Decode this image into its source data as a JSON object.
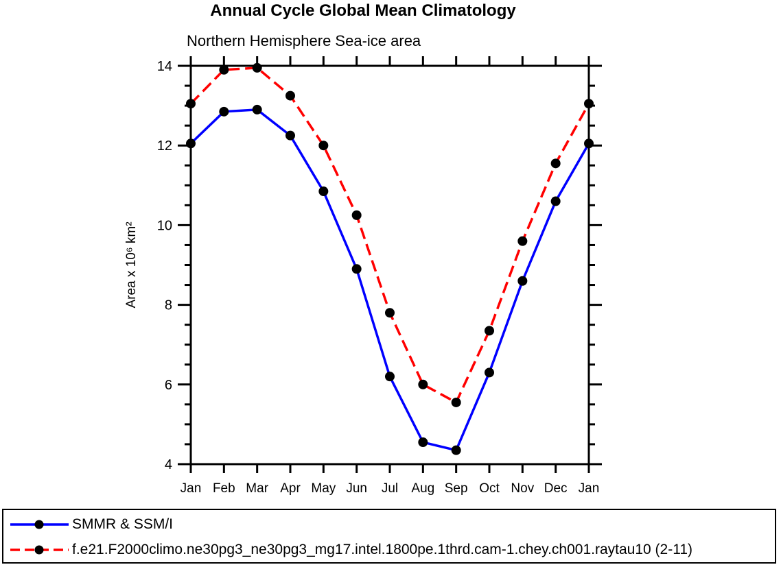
{
  "title": "Annual Cycle Global Mean Climatology",
  "subtitle": "Northern Hemisphere Sea-ice area",
  "chart_data": {
    "type": "line",
    "title": "Annual Cycle Global Mean Climatology",
    "subtitle": "Northern Hemisphere Sea-ice area",
    "xlabel": "",
    "ylabel": "Area x 10⁶ km²",
    "categories": [
      "Jan",
      "Feb",
      "Mar",
      "Apr",
      "May",
      "Jun",
      "Jul",
      "Aug",
      "Sep",
      "Oct",
      "Nov",
      "Dec",
      "Jan"
    ],
    "ylim": [
      4,
      14
    ],
    "ytick_major": [
      4,
      6,
      8,
      10,
      12,
      14
    ],
    "ytick_minor_step": 0.5,
    "grid": false,
    "frame": "box-with-outward-ticks",
    "legend_position": "bottom-left-box",
    "series": [
      {
        "name": "SMMR & SSM/I",
        "color": "#0000ff",
        "line_style": "solid",
        "marker": "filled-circle",
        "marker_color": "#000000",
        "values": [
          12.05,
          12.85,
          12.9,
          12.25,
          10.85,
          8.9,
          6.2,
          4.55,
          4.35,
          6.3,
          8.6,
          10.6,
          12.05
        ]
      },
      {
        "name": "f.e21.F2000climo.ne30pg3_ne30pg3_mg17.intel.1800pe.1thrd.cam-1.chey.ch001.raytau10 (2-11)",
        "color": "#ff0000",
        "line_style": "dashed",
        "marker": "filled-circle",
        "marker_color": "#000000",
        "values": [
          13.05,
          13.9,
          13.95,
          13.25,
          12.0,
          10.25,
          7.8,
          6.0,
          5.55,
          7.35,
          9.6,
          11.55,
          13.05
        ]
      }
    ],
    "colors": {
      "axis": "#000000",
      "text": "#000000",
      "background": "#ffffff"
    }
  }
}
